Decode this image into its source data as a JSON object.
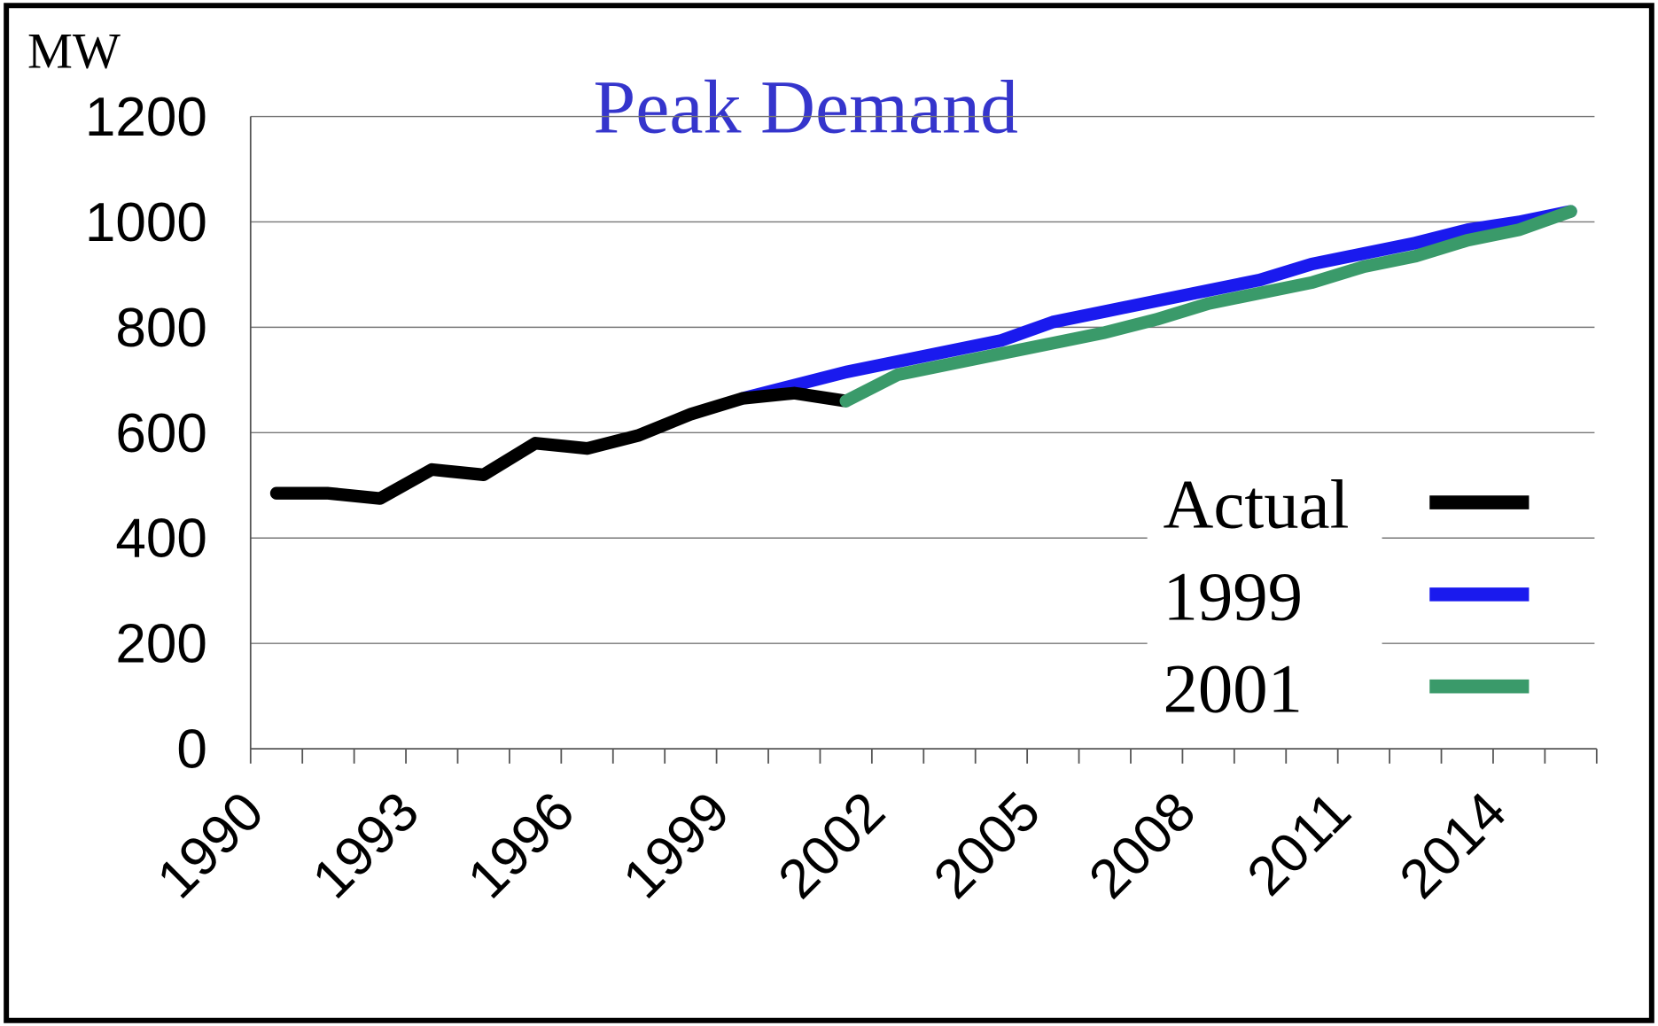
{
  "chart_data": {
    "type": "line",
    "title": "Peak Demand",
    "y_label": "MW",
    "categories": [
      "1990",
      null,
      null,
      "1993",
      null,
      null,
      "1996",
      null,
      null,
      "1999",
      null,
      null,
      "2002",
      null,
      null,
      "2005",
      null,
      null,
      "2008",
      null,
      null,
      "2011",
      null,
      null,
      "2014",
      null
    ],
    "series": [
      {
        "name": "Actual",
        "color": "#000000",
        "values": [
          485,
          485,
          475,
          530,
          520,
          580,
          570,
          595,
          635,
          665,
          675,
          660,
          null,
          null,
          null,
          null,
          null,
          null,
          null,
          null,
          null,
          null,
          null,
          null,
          null,
          null
        ]
      },
      {
        "name": "1999",
        "color": "#1a1aee",
        "values": [
          null,
          null,
          null,
          null,
          null,
          null,
          null,
          null,
          null,
          665,
          690,
          715,
          735,
          755,
          775,
          810,
          830,
          850,
          870,
          890,
          920,
          940,
          960,
          985,
          1000,
          1020
        ]
      },
      {
        "name": "2001",
        "color": "#3a9a6a",
        "values": [
          null,
          null,
          null,
          null,
          null,
          null,
          null,
          null,
          null,
          null,
          null,
          660,
          710,
          730,
          750,
          770,
          790,
          815,
          845,
          865,
          885,
          915,
          935,
          965,
          985,
          1020
        ]
      }
    ],
    "ylim": [
      0,
      1200
    ],
    "yticks": [
      0,
      200,
      400,
      600,
      800,
      1000,
      1200
    ],
    "grid": true,
    "legend": "right"
  }
}
